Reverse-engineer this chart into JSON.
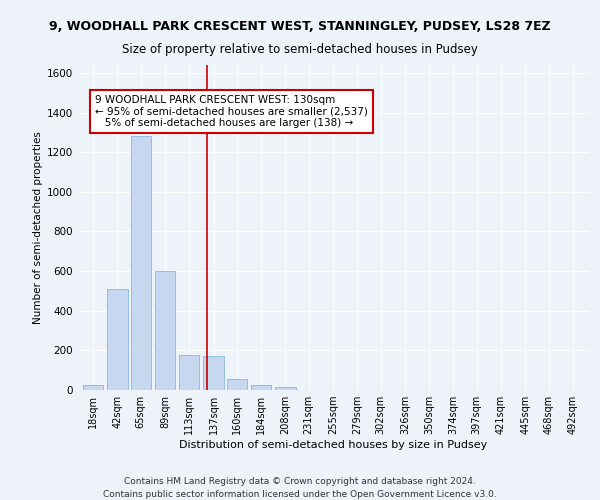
{
  "title1": "9, WOODHALL PARK CRESCENT WEST, STANNINGLEY, PUDSEY, LS28 7EZ",
  "title2": "Size of property relative to semi-detached houses in Pudsey",
  "xlabel": "Distribution of semi-detached houses by size in Pudsey",
  "ylabel": "Number of semi-detached properties",
  "footer1": "Contains HM Land Registry data © Crown copyright and database right 2024.",
  "footer2": "Contains public sector information licensed under the Open Government Licence v3.0.",
  "annotation_line1": "9 WOODHALL PARK CRESCENT WEST: 130sqm",
  "annotation_line2": "← 95% of semi-detached houses are smaller (2,537)",
  "annotation_line3": "   5% of semi-detached houses are larger (138) →",
  "bins": [
    18,
    42,
    65,
    89,
    113,
    137,
    160,
    184,
    208,
    231,
    255,
    279,
    302,
    326,
    350,
    374,
    397,
    421,
    445,
    468,
    492
  ],
  "counts": [
    25,
    510,
    1280,
    600,
    175,
    170,
    55,
    25,
    15,
    0,
    0,
    0,
    0,
    0,
    0,
    0,
    0,
    0,
    0,
    0,
    0
  ],
  "bar_color": "#c5d8f0",
  "bar_edge_color": "#7aaed6",
  "vline_color": "#cc0000",
  "vline_x": 130,
  "annotation_box_color": "#cc0000",
  "background_color": "#eef2f9",
  "ylim": [
    0,
    1640
  ],
  "yticks": [
    0,
    200,
    400,
    600,
    800,
    1000,
    1200,
    1400,
    1600
  ],
  "grid_color": "#ffffff",
  "title1_fontsize": 9,
  "title2_fontsize": 8.5,
  "xlabel_fontsize": 8,
  "ylabel_fontsize": 7.5,
  "tick_fontsize": 7,
  "footer_fontsize": 6.5
}
